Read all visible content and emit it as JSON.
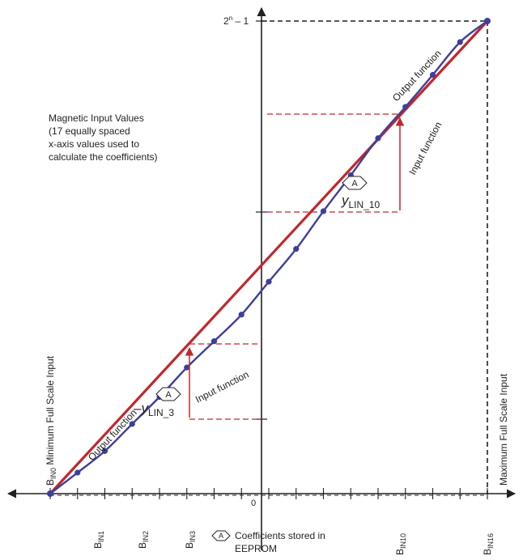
{
  "top_value": {
    "main": "2",
    "sup": "n",
    "tail": " – 1"
  },
  "origin_label": "0",
  "magnetic_note": [
    "Magnetic Input Values",
    "(17 equally spaced",
    "x-axis values used to",
    "calculate the coefficients)"
  ],
  "output_function_label": "Output function",
  "input_function_label": "Input function",
  "marker_letter": "A",
  "ylin10": {
    "main": "y",
    "sub": "LIN_10"
  },
  "ylin3": {
    "prefix": "–",
    "main": "y",
    "sub": "LIN_3"
  },
  "min_input": {
    "main": "B",
    "sub": "IN0",
    "rest": " Minimum Full Scale Input"
  },
  "max_input_label": "Maximum Full Scale Input",
  "x_ticks": [
    {
      "main": "B",
      "sub": "IN1"
    },
    {
      "main": "B",
      "sub": "IN2"
    },
    {
      "main": "B",
      "sub": "IN3"
    },
    {
      "main": "B",
      "sub": "IN10"
    },
    {
      "main": "B",
      "sub": "IN16"
    }
  ],
  "legend": {
    "line1": "Coefficients stored in",
    "line2": "EEPROM"
  },
  "colors": {
    "output_line": "#c1272d",
    "input_curve": "#3d3f98",
    "dashed_ref": "#c1272d",
    "axis": "#231f20"
  },
  "input_curve_points": [
    [
      0,
      0.0
    ],
    [
      1,
      0.0445
    ],
    [
      2,
      0.0901
    ],
    [
      3,
      0.1475
    ],
    [
      4,
      0.2046
    ],
    [
      5,
      0.2669
    ],
    [
      6,
      0.3225
    ],
    [
      7,
      0.3788
    ],
    [
      8,
      0.4484
    ],
    [
      9,
      0.5178
    ],
    [
      10,
      0.5977
    ],
    [
      11,
      0.6737
    ],
    [
      12,
      0.7521
    ],
    [
      13,
      0.8183
    ],
    [
      14,
      0.8861
    ],
    [
      15,
      0.9555
    ],
    [
      16,
      1.0
    ]
  ]
}
